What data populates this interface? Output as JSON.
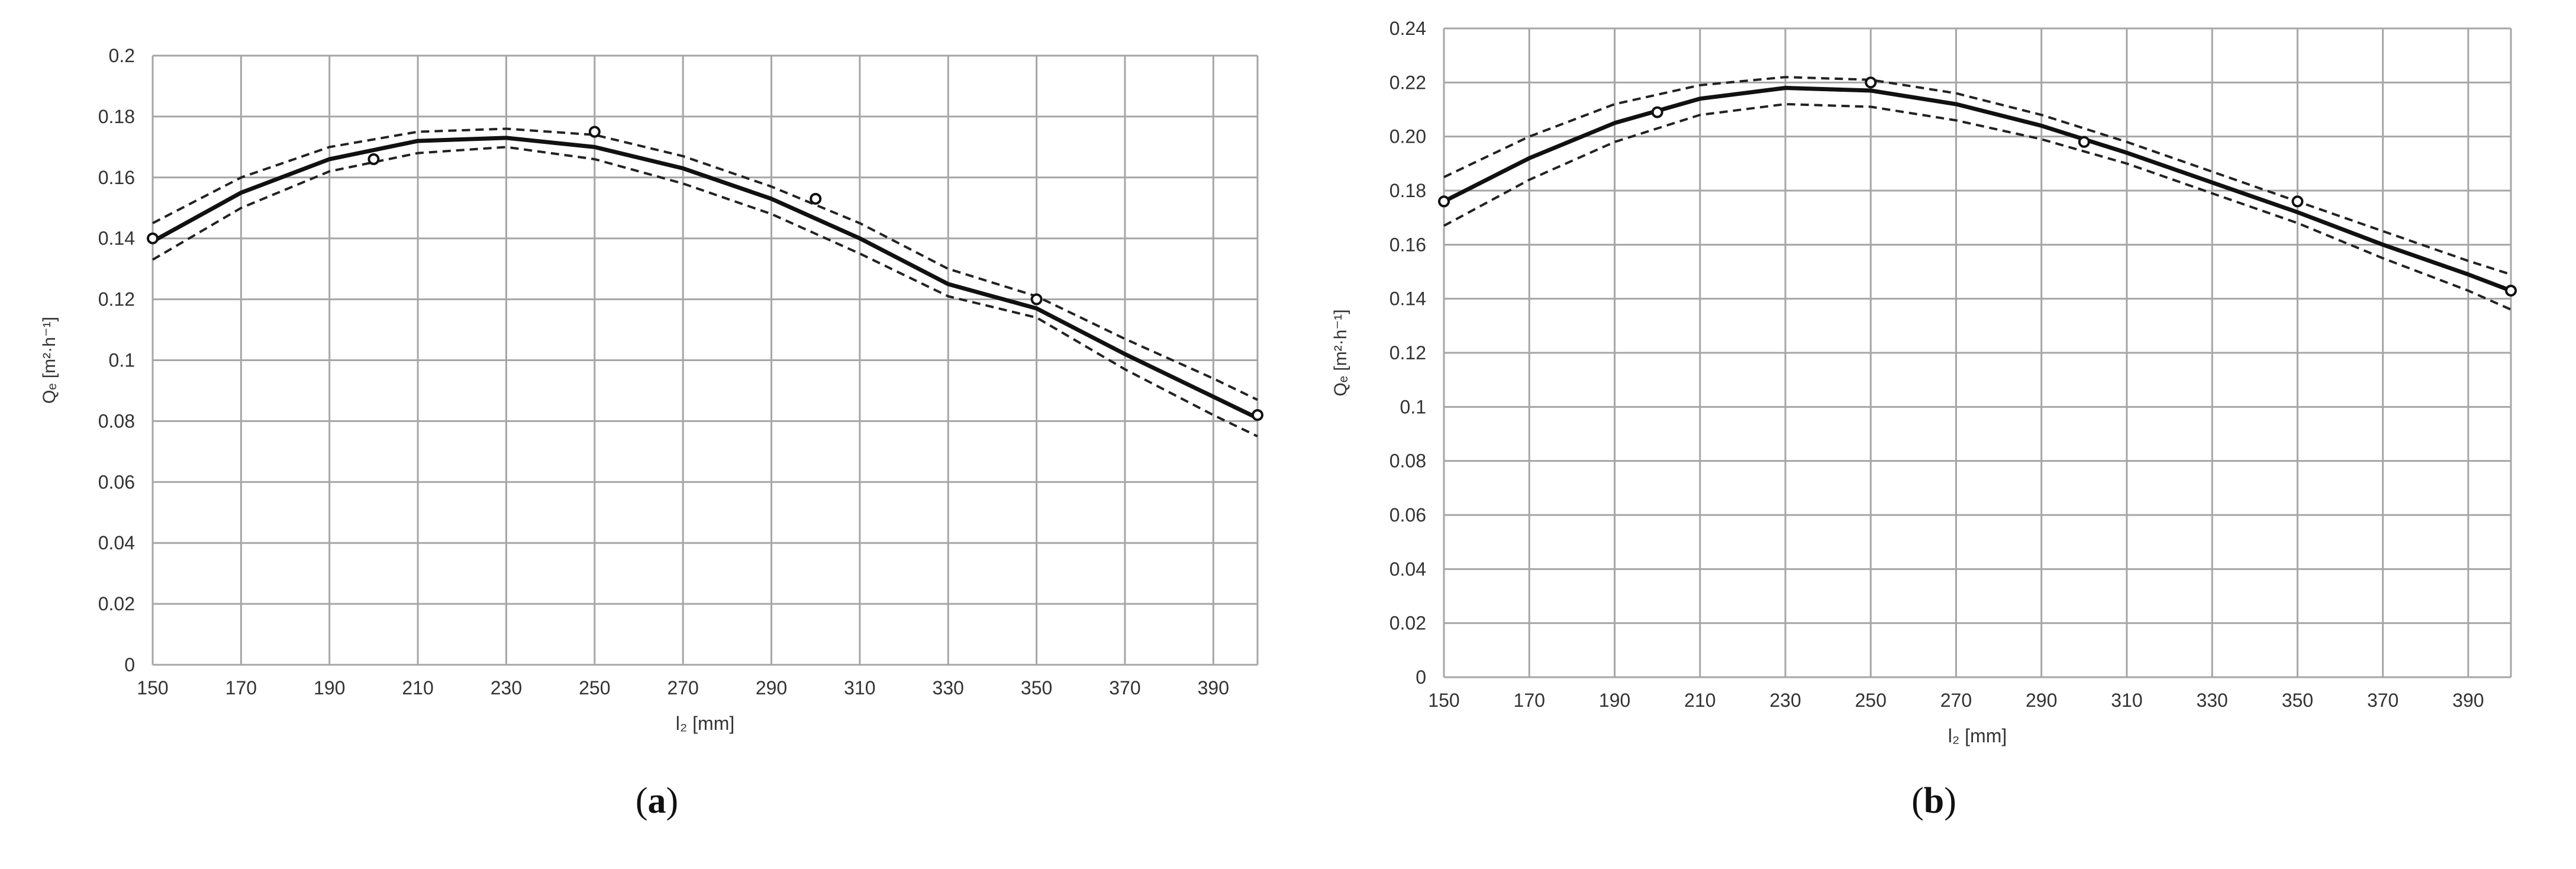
{
  "chart_data": [
    {
      "panel": "a",
      "type": "scatter",
      "caption": "a",
      "xlabel": "l₂ [mm]",
      "ylabel": "Qₑ [m²·h⁻¹]",
      "xlim": [
        150,
        400
      ],
      "ylim": [
        0,
        0.2
      ],
      "xticks": [
        150,
        170,
        190,
        210,
        230,
        250,
        270,
        290,
        310,
        330,
        350,
        370,
        390
      ],
      "yticks": [
        0,
        0.02,
        0.04,
        0.06,
        0.08,
        0.1,
        0.12,
        0.14,
        0.16,
        0.18,
        0.2
      ],
      "ytick_labels": [
        "0",
        "0.02",
        "0.04",
        "0.06",
        "0.08",
        "0.1",
        "0.12",
        "0.14",
        "0.16",
        "0.18",
        "0.2"
      ],
      "grid": true,
      "points": {
        "x": [
          150,
          200,
          250,
          300,
          350,
          400
        ],
        "y": [
          0.14,
          0.166,
          0.175,
          0.153,
          0.12,
          0.082
        ]
      },
      "fit": {
        "x": [
          150,
          170,
          190,
          210,
          230,
          250,
          270,
          290,
          310,
          330,
          350,
          370,
          390,
          400
        ],
        "y": [
          0.139,
          0.155,
          0.166,
          0.172,
          0.173,
          0.17,
          0.163,
          0.153,
          0.14,
          0.125,
          0.117,
          0.102,
          0.088,
          0.081
        ]
      },
      "upper": {
        "x": [
          150,
          170,
          190,
          210,
          230,
          250,
          270,
          290,
          310,
          330,
          350,
          370,
          390,
          400
        ],
        "y": [
          0.145,
          0.16,
          0.17,
          0.175,
          0.176,
          0.174,
          0.167,
          0.157,
          0.145,
          0.13,
          0.121,
          0.107,
          0.094,
          0.087
        ]
      },
      "lower": {
        "x": [
          150,
          170,
          190,
          210,
          230,
          250,
          270,
          290,
          310,
          330,
          350,
          370,
          390,
          400
        ],
        "y": [
          0.133,
          0.15,
          0.162,
          0.168,
          0.17,
          0.166,
          0.158,
          0.148,
          0.135,
          0.121,
          0.114,
          0.097,
          0.082,
          0.075
        ]
      }
    },
    {
      "panel": "b",
      "type": "scatter",
      "caption": "b",
      "xlabel": "l₂ [mm]",
      "ylabel": "Qₑ [m²·h⁻¹]",
      "xlim": [
        150,
        400
      ],
      "ylim": [
        0,
        0.24
      ],
      "xticks": [
        150,
        170,
        190,
        210,
        230,
        250,
        270,
        290,
        310,
        330,
        350,
        370,
        390
      ],
      "yticks": [
        0,
        0.02,
        0.04,
        0.06,
        0.08,
        0.1,
        0.12,
        0.14,
        0.16,
        0.18,
        0.2,
        0.22,
        0.24
      ],
      "ytick_labels": [
        "0",
        "0.02",
        "0.04",
        "0.06",
        "0.08",
        "0.1",
        "0.12",
        "0.14",
        "0.16",
        "0.18",
        "0.20",
        "0.22",
        "0.24"
      ],
      "grid": true,
      "points": {
        "x": [
          150,
          200,
          250,
          300,
          350,
          400
        ],
        "y": [
          0.176,
          0.209,
          0.22,
          0.198,
          0.176,
          0.143
        ]
      },
      "fit": {
        "x": [
          150,
          170,
          190,
          210,
          230,
          250,
          270,
          290,
          310,
          330,
          350,
          370,
          390,
          400
        ],
        "y": [
          0.176,
          0.192,
          0.205,
          0.214,
          0.218,
          0.217,
          0.212,
          0.204,
          0.194,
          0.183,
          0.172,
          0.16,
          0.149,
          0.143
        ]
      },
      "upper": {
        "x": [
          150,
          170,
          190,
          210,
          230,
          250,
          270,
          290,
          310,
          330,
          350,
          370,
          390,
          400
        ],
        "y": [
          0.185,
          0.2,
          0.212,
          0.219,
          0.222,
          0.221,
          0.216,
          0.208,
          0.198,
          0.187,
          0.176,
          0.165,
          0.154,
          0.149
        ]
      },
      "lower": {
        "x": [
          150,
          170,
          190,
          210,
          230,
          250,
          270,
          290,
          310,
          330,
          350,
          370,
          390,
          400
        ],
        "y": [
          0.167,
          0.184,
          0.198,
          0.208,
          0.212,
          0.211,
          0.206,
          0.199,
          0.19,
          0.179,
          0.168,
          0.155,
          0.143,
          0.136
        ]
      }
    }
  ]
}
